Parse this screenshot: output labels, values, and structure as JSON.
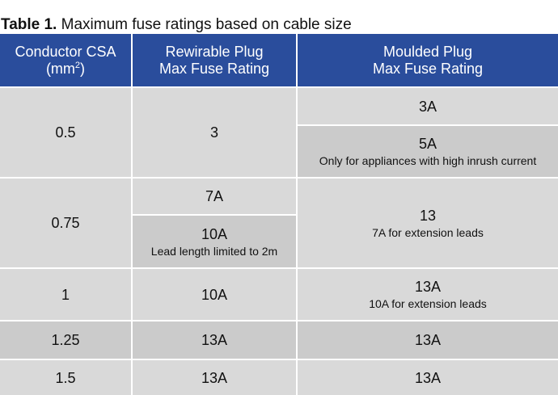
{
  "caption": {
    "prefix": "Table 1.",
    "text": " Maximum fuse ratings based on cable size"
  },
  "headers": {
    "col1_line1": "Conductor CSA",
    "col1_line2_base": "(mm",
    "col1_line2_sup": "2",
    "col1_line2_end": ")",
    "col2_line1": "Rewirable Plug",
    "col2_line2": "Max Fuse Rating",
    "col3_line1": "Moulded Plug",
    "col3_line2": "Max Fuse Rating"
  },
  "rows": [
    {
      "csa": "0.5",
      "rewirable": {
        "value": "3"
      },
      "moulded": [
        {
          "value": "3A"
        },
        {
          "value": "5A",
          "note": "Only for appliances with high inrush current"
        }
      ]
    },
    {
      "csa": "0.75",
      "rewirable": [
        {
          "value": "7A"
        },
        {
          "value": "10A",
          "note": "Lead length limited to 2m"
        }
      ],
      "moulded": {
        "value": "13",
        "note": "7A for extension leads"
      }
    },
    {
      "csa": "1",
      "rewirable": {
        "value": "10A"
      },
      "moulded": {
        "value": "13A",
        "note": "10A for extension leads"
      }
    },
    {
      "csa": "1.25",
      "rewirable": {
        "value": "13A"
      },
      "moulded": {
        "value": "13A"
      }
    },
    {
      "csa": "1.5",
      "rewirable": {
        "value": "13A"
      },
      "moulded": {
        "value": "13A"
      }
    }
  ],
  "colors": {
    "header_bg": "#2a4d9c",
    "cell_light": "#d9d9d9",
    "cell_dark": "#cbcbcb"
  }
}
